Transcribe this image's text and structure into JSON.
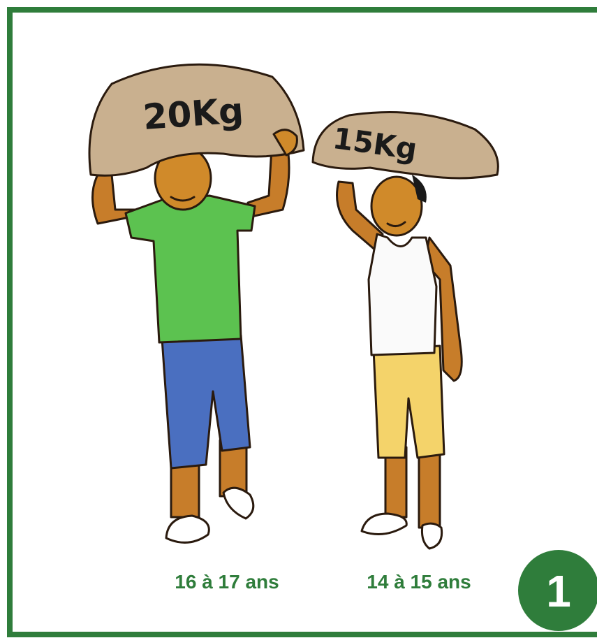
{
  "panel": {
    "number": "1",
    "figures": [
      {
        "load": "20Kg",
        "age": "16 à 17 ans"
      },
      {
        "load": "15Kg",
        "age": "14 à 15 ans"
      }
    ]
  }
}
